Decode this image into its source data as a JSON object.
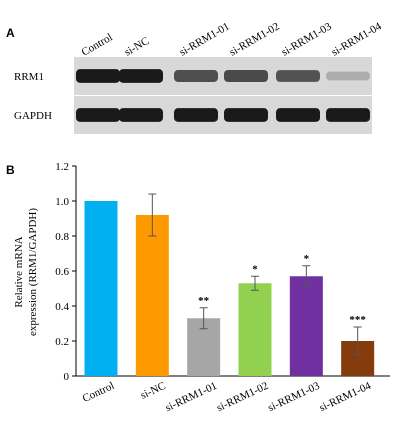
{
  "panel_a": {
    "label": "A",
    "lanes": [
      "Control",
      "si-NC",
      "si-RRM1-01",
      "si-RRM1-02",
      "si-RRM1-03",
      "si-RRM1-04"
    ],
    "rows": [
      {
        "name": "RRM1",
        "intensity": [
          0.95,
          0.95,
          0.7,
          0.72,
          0.68,
          0.25
        ]
      },
      {
        "name": "GAPDH",
        "intensity": [
          0.95,
          0.95,
          0.95,
          0.95,
          0.95,
          0.95
        ]
      }
    ]
  },
  "chart_data": {
    "panel_label": "B",
    "type": "bar",
    "categories": [
      "Control",
      "si-NC",
      "si-RRM1-01",
      "si-RRM1-02",
      "si-RRM1-03",
      "si-RRM1-04"
    ],
    "values": [
      1.0,
      0.92,
      0.33,
      0.53,
      0.57,
      0.2
    ],
    "errors": [
      0.0,
      0.12,
      0.06,
      0.04,
      0.06,
      0.08
    ],
    "significance": [
      "",
      "",
      "**",
      "*",
      "*",
      "***"
    ],
    "colors": [
      "#00b0f0",
      "#ff9900",
      "#a6a6a6",
      "#92d050",
      "#7030a0",
      "#843c0c"
    ],
    "ylabel_line1": "Relative mRNA",
    "ylabel_line2": "expression (RRM1/GAPDH)",
    "ylim": [
      0,
      1.2
    ],
    "yticks": [
      "0",
      "0.2",
      "0.4",
      "0.6",
      "0.8",
      "1.0",
      "1.2"
    ],
    "grid": false
  }
}
